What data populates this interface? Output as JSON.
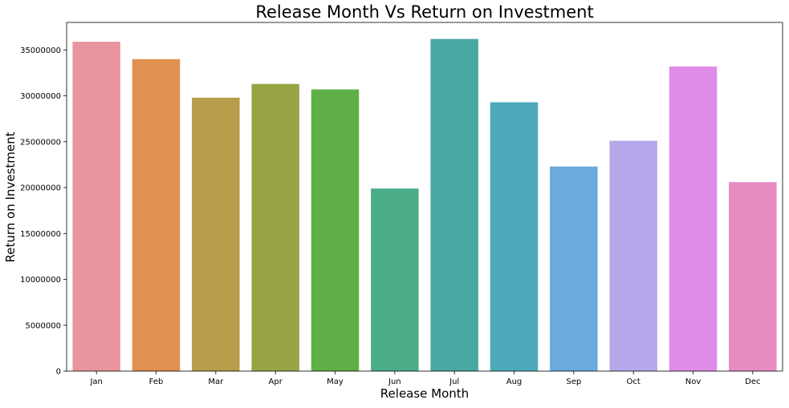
{
  "chart_data": {
    "type": "bar",
    "title": "Release Month Vs Return on Investment",
    "xlabel": "Release Month",
    "ylabel": "Return on Investment",
    "categories": [
      "Jan",
      "Feb",
      "Mar",
      "Apr",
      "May",
      "Jun",
      "Jul",
      "Aug",
      "Sep",
      "Oct",
      "Nov",
      "Dec"
    ],
    "values": [
      35900000,
      34000000,
      29800000,
      31300000,
      30700000,
      19900000,
      36200000,
      29300000,
      22300000,
      25100000,
      33200000,
      20600000
    ],
    "colors": [
      "#e9959f",
      "#e0904f",
      "#b79d4a",
      "#99a545",
      "#5eaf46",
      "#4aad88",
      "#48a8a1",
      "#4ca8bb",
      "#6aaadd",
      "#b5a7ea",
      "#df8ce8",
      "#e78bc3"
    ],
    "yticks": [
      "0",
      "5000000",
      "10000000",
      "15000000",
      "20000000",
      "25000000",
      "30000000",
      "35000000"
    ],
    "ylim": [
      0,
      38000000
    ],
    "grid": false,
    "legend": "none"
  }
}
